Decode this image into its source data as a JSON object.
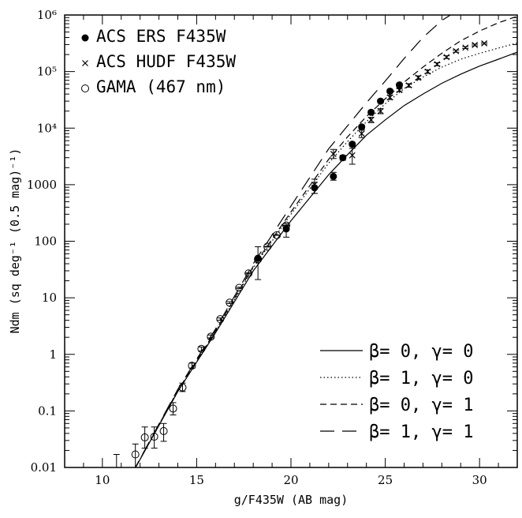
{
  "chart_data": {
    "type": "scatter",
    "xlabel": "g/F435W (AB mag)",
    "ylabel": "Ndm (sq deg⁻¹ (0.5 mag)⁻¹)",
    "xlim": [
      8,
      32
    ],
    "ylim": [
      0.01,
      1000000
    ],
    "yscale": "log",
    "x_ticks": [
      "10",
      "15",
      "20",
      "25",
      "30"
    ],
    "y_ticks": [
      "0.01",
      "0.1",
      "1",
      "10",
      "100",
      "1000",
      "10⁴",
      "10⁵",
      "10⁶"
    ],
    "legend_points": [
      {
        "label": "ACS ERS F435W",
        "marker": "filled-circle"
      },
      {
        "label": "ACS HUDF F435W",
        "marker": "cross"
      },
      {
        "label": "GAMA (467 nm)",
        "marker": "open-circle"
      }
    ],
    "legend_models": [
      {
        "label": "β= 0, γ= 0",
        "dash": "solid"
      },
      {
        "label": "β= 1, γ= 0",
        "dash": "dotted"
      },
      {
        "label": "β= 0, γ= 1",
        "dash": "short-dash"
      },
      {
        "label": "β= 1, γ= 1",
        "dash": "long-dash"
      }
    ],
    "series": [
      {
        "name": "GAMA (467 nm)",
        "marker": "open-circle",
        "points": [
          {
            "x": 10.75,
            "y": 0.008,
            "lo": 0.003,
            "hi": 0.017
          },
          {
            "x": 11.75,
            "y": 0.017,
            "lo": 0.009,
            "hi": 0.026
          },
          {
            "x": 12.25,
            "y": 0.034,
            "lo": 0.022,
            "hi": 0.052
          },
          {
            "x": 12.75,
            "y": 0.035,
            "lo": 0.022,
            "hi": 0.052
          },
          {
            "x": 13.25,
            "y": 0.044,
            "lo": 0.029,
            "hi": 0.06
          },
          {
            "x": 13.75,
            "y": 0.11,
            "lo": 0.085,
            "hi": 0.14
          },
          {
            "x": 14.25,
            "y": 0.26,
            "lo": 0.22,
            "hi": 0.31
          },
          {
            "x": 14.75,
            "y": 0.63,
            "lo": 0.57,
            "hi": 0.7
          },
          {
            "x": 15.25,
            "y": 1.25,
            "lo": 1.15,
            "hi": 1.35
          },
          {
            "x": 15.75,
            "y": 2.05,
            "lo": 1.95,
            "hi": 2.2
          },
          {
            "x": 16.25,
            "y": 4.2,
            "lo": 4.0,
            "hi": 4.4
          },
          {
            "x": 16.75,
            "y": 8.2,
            "lo": 7.9,
            "hi": 8.5
          },
          {
            "x": 17.25,
            "y": 15,
            "lo": 14.6,
            "hi": 15.4
          },
          {
            "x": 17.75,
            "y": 27,
            "lo": 26.5,
            "hi": 27.5
          },
          {
            "x": 18.25,
            "y": 48,
            "lo": 47,
            "hi": 49
          },
          {
            "x": 18.75,
            "y": 80,
            "lo": 79,
            "hi": 81
          },
          {
            "x": 19.25,
            "y": 128,
            "lo": 127,
            "hi": 129
          },
          {
            "x": 19.75,
            "y": 190,
            "lo": 188,
            "hi": 192
          }
        ]
      },
      {
        "name": "ACS ERS F435W",
        "marker": "filled-circle",
        "points": [
          {
            "x": 18.25,
            "y": 50,
            "lo": 21,
            "hi": 80
          },
          {
            "x": 19.75,
            "y": 165,
            "lo": 118,
            "hi": 205
          },
          {
            "x": 21.25,
            "y": 880,
            "lo": 700,
            "hi": 1100
          },
          {
            "x": 22.25,
            "y": 1400,
            "lo": 1200,
            "hi": 1650
          },
          {
            "x": 22.75,
            "y": 3000,
            "lo": 2700,
            "hi": 3300
          },
          {
            "x": 23.25,
            "y": 5200,
            "lo": 4800,
            "hi": 5600
          },
          {
            "x": 23.75,
            "y": 10500,
            "lo": 9700,
            "hi": 11300
          },
          {
            "x": 24.25,
            "y": 19000,
            "lo": 17500,
            "hi": 20500
          },
          {
            "x": 24.75,
            "y": 30000,
            "lo": 28000,
            "hi": 32000
          },
          {
            "x": 25.25,
            "y": 45000,
            "lo": 42000,
            "hi": 48000
          },
          {
            "x": 25.75,
            "y": 58000,
            "lo": 54000,
            "hi": 62000
          }
        ]
      },
      {
        "name": "ACS HUDF F435W",
        "marker": "cross",
        "points": [
          {
            "x": 21.25,
            "y": 1000,
            "lo": 700,
            "hi": 1250
          },
          {
            "x": 22.25,
            "y": 3500,
            "lo": 2900,
            "hi": 4200
          },
          {
            "x": 23.25,
            "y": 3300,
            "lo": 2300,
            "hi": 4400
          },
          {
            "x": 23.75,
            "y": 8000,
            "lo": 6800,
            "hi": 9200
          },
          {
            "x": 24.25,
            "y": 14000,
            "lo": 12500,
            "hi": 15500
          },
          {
            "x": 24.75,
            "y": 20000,
            "lo": 18000,
            "hi": 22000
          },
          {
            "x": 25.25,
            "y": 35000,
            "lo": 32000,
            "hi": 38000
          },
          {
            "x": 25.75,
            "y": 47000,
            "lo": 44000,
            "hi": 50000
          },
          {
            "x": 26.25,
            "y": 57000,
            "lo": 53000,
            "hi": 61000
          },
          {
            "x": 26.75,
            "y": 78000,
            "lo": 72000,
            "hi": 84000
          },
          {
            "x": 27.25,
            "y": 100000,
            "lo": 93000,
            "hi": 107000
          },
          {
            "x": 27.75,
            "y": 135000,
            "lo": 127000,
            "hi": 143000
          },
          {
            "x": 28.25,
            "y": 180000,
            "lo": 170000,
            "hi": 190000
          },
          {
            "x": 28.75,
            "y": 230000,
            "lo": 220000,
            "hi": 240000
          },
          {
            "x": 29.25,
            "y": 265000,
            "lo": 255000,
            "hi": 275000
          },
          {
            "x": 29.75,
            "y": 295000,
            "lo": 285000,
            "hi": 305000
          },
          {
            "x": 30.25,
            "y": 315000,
            "lo": 305000,
            "hi": 325000
          }
        ]
      }
    ],
    "models": [
      {
        "name": "β= 0, γ= 0",
        "dash": "solid",
        "x": [
          11,
          14,
          16,
          18,
          20,
          22,
          23,
          24,
          25,
          26,
          27,
          28,
          29,
          30,
          31,
          32
        ],
        "y": [
          0.0035,
          0.22,
          2.4,
          30,
          230,
          1500,
          3400,
          7500,
          14000,
          25000,
          40000,
          62000,
          90000,
          125000,
          165000,
          220000
        ]
      },
      {
        "name": "β= 1, γ= 0",
        "dash": "dotted",
        "x": [
          11,
          14,
          16,
          18,
          20,
          22,
          23,
          24,
          25,
          26,
          27,
          28,
          29,
          30,
          31,
          32
        ],
        "y": [
          0.0035,
          0.22,
          2.5,
          34,
          300,
          2400,
          5800,
          13000,
          27000,
          50000,
          80000,
          120000,
          165000,
          210000,
          260000,
          320000
        ]
      },
      {
        "name": "β= 0, γ= 1",
        "dash": "short-dash",
        "x": [
          11,
          14,
          16,
          18,
          20,
          22,
          23,
          24,
          25,
          26,
          27,
          28,
          29,
          30,
          31,
          32
        ],
        "y": [
          0.0035,
          0.23,
          2.6,
          36,
          330,
          2800,
          7000,
          16000,
          33000,
          65000,
          120000,
          210000,
          350000,
          520000,
          730000,
          950000
        ]
      },
      {
        "name": "β= 1, γ= 1",
        "dash": "long-dash",
        "x": [
          11,
          14,
          16,
          18,
          20,
          22,
          23,
          24,
          25,
          26,
          27,
          28,
          29,
          30,
          31
        ],
        "y": [
          0.0035,
          0.24,
          2.8,
          40,
          420,
          4300,
          11000,
          28000,
          68000,
          170000,
          400000,
          800000,
          1300000,
          1800000,
          2300000
        ]
      }
    ]
  }
}
